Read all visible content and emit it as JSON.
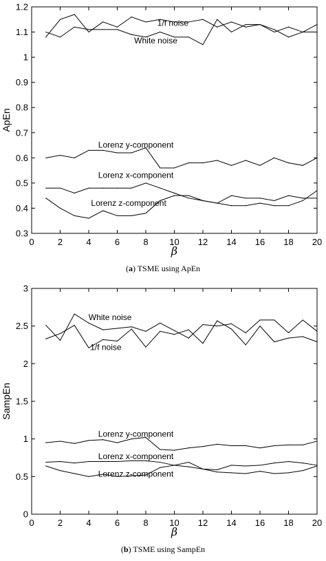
{
  "chart_data": [
    {
      "type": "line",
      "caption_letter": "a",
      "caption_text": "TSME using ApEn",
      "xlabel": "β",
      "ylabel": "ApEn",
      "xlim": [
        0,
        20
      ],
      "ylim": [
        0.3,
        1.2
      ],
      "xticks": [
        0,
        2,
        4,
        6,
        8,
        10,
        12,
        14,
        16,
        18,
        20
      ],
      "yticks": [
        0.3,
        0.4,
        0.5,
        0.6,
        0.7,
        0.8,
        0.9,
        1,
        1.1,
        1.2
      ],
      "ytick_labels": [
        "0.3",
        "0.4",
        "0.5",
        "0.6",
        "0.7",
        "0.8",
        "0.9",
        "1",
        "1.1",
        "1.2"
      ],
      "grid": false,
      "x": [
        1,
        2,
        3,
        4,
        5,
        6,
        7,
        8,
        9,
        10,
        11,
        12,
        13,
        14,
        15,
        16,
        17,
        18,
        19,
        20
      ],
      "series": [
        {
          "name": "1/f noise",
          "values": [
            1.08,
            1.15,
            1.17,
            1.1,
            1.14,
            1.12,
            1.16,
            1.14,
            1.15,
            1.14,
            1.14,
            1.15,
            1.12,
            1.14,
            1.12,
            1.13,
            1.1,
            1.12,
            1.1,
            1.1
          ]
        },
        {
          "name": "White noise",
          "values": [
            1.1,
            1.08,
            1.12,
            1.11,
            1.11,
            1.11,
            1.09,
            1.08,
            1.1,
            1.08,
            1.08,
            1.05,
            1.15,
            1.1,
            1.13,
            1.13,
            1.11,
            1.08,
            1.1,
            1.13
          ]
        },
        {
          "name": "Lorenz y-component",
          "values": [
            0.6,
            0.61,
            0.6,
            0.63,
            0.63,
            0.62,
            0.62,
            0.64,
            0.56,
            0.56,
            0.58,
            0.58,
            0.59,
            0.57,
            0.59,
            0.57,
            0.6,
            0.58,
            0.57,
            0.6
          ]
        },
        {
          "name": "Lorenz x-component",
          "values": [
            0.48,
            0.48,
            0.46,
            0.48,
            0.48,
            0.48,
            0.48,
            0.5,
            0.48,
            0.46,
            0.44,
            0.43,
            0.42,
            0.45,
            0.44,
            0.44,
            0.43,
            0.45,
            0.44,
            0.44
          ]
        },
        {
          "name": "Lorenz z-component",
          "values": [
            0.44,
            0.4,
            0.37,
            0.36,
            0.39,
            0.37,
            0.37,
            0.38,
            0.43,
            0.45,
            0.45,
            0.43,
            0.42,
            0.41,
            0.41,
            0.42,
            0.41,
            0.41,
            0.43,
            0.47
          ]
        }
      ],
      "annotations": [
        {
          "text": "1/f noise",
          "x": 9.9,
          "y": 1.125
        },
        {
          "text": "White noise",
          "x": 8.7,
          "y": 1.055
        },
        {
          "text": "Lorenz y-component",
          "x": 7.3,
          "y": 0.64
        },
        {
          "text": "Lorenz x-component",
          "x": 7.3,
          "y": 0.52
        },
        {
          "text": "Lorenz z-component",
          "x": 6.8,
          "y": 0.41
        }
      ]
    },
    {
      "type": "line",
      "caption_letter": "b",
      "caption_text": "TSME using SampEn",
      "xlabel": "β",
      "ylabel": "SampEn",
      "xlim": [
        0,
        20
      ],
      "ylim": [
        0,
        3
      ],
      "xticks": [
        0,
        2,
        4,
        6,
        8,
        10,
        12,
        14,
        16,
        18,
        20
      ],
      "yticks": [
        0,
        0.5,
        1,
        1.5,
        2,
        2.5,
        3
      ],
      "ytick_labels": [
        "0",
        "0.5",
        "1",
        "1.5",
        "2",
        "2.5",
        "3"
      ],
      "grid": false,
      "x": [
        1,
        2,
        3,
        4,
        5,
        6,
        7,
        8,
        9,
        10,
        11,
        12,
        13,
        14,
        15,
        16,
        17,
        18,
        19,
        20
      ],
      "series": [
        {
          "name": "White noise",
          "values": [
            2.51,
            2.31,
            2.66,
            2.54,
            2.45,
            2.47,
            2.49,
            2.43,
            2.54,
            2.44,
            2.34,
            2.52,
            2.5,
            2.53,
            2.41,
            2.58,
            2.58,
            2.41,
            2.58,
            2.43
          ]
        },
        {
          "name": "1/f noise",
          "values": [
            2.33,
            2.4,
            2.51,
            2.21,
            2.32,
            2.3,
            2.46,
            2.22,
            2.43,
            2.39,
            2.45,
            2.27,
            2.57,
            2.46,
            2.25,
            2.5,
            2.29,
            2.34,
            2.36,
            2.29
          ]
        },
        {
          "name": "Lorenz y-component",
          "values": [
            0.95,
            0.97,
            0.94,
            0.98,
            0.99,
            0.95,
            1.0,
            1.02,
            0.86,
            0.85,
            0.88,
            0.9,
            0.93,
            0.91,
            0.91,
            0.88,
            0.91,
            0.92,
            0.92,
            0.97
          ]
        },
        {
          "name": "Lorenz x-component",
          "values": [
            0.69,
            0.7,
            0.68,
            0.7,
            0.7,
            0.7,
            0.71,
            0.71,
            0.69,
            0.65,
            0.63,
            0.6,
            0.59,
            0.65,
            0.64,
            0.65,
            0.68,
            0.7,
            0.68,
            0.65
          ]
        },
        {
          "name": "Lorenz z-component",
          "values": [
            0.64,
            0.58,
            0.54,
            0.5,
            0.53,
            0.5,
            0.51,
            0.52,
            0.62,
            0.65,
            0.69,
            0.6,
            0.56,
            0.55,
            0.54,
            0.57,
            0.54,
            0.55,
            0.58,
            0.64
          ]
        }
      ],
      "annotations": [
        {
          "text": "White noise",
          "x": 5.5,
          "y": 2.58
        },
        {
          "text": "1/f noise",
          "x": 5.2,
          "y": 2.18
        },
        {
          "text": "Lorenz y-component",
          "x": 7.3,
          "y": 1.03
        },
        {
          "text": "Lorenz x-component",
          "x": 7.3,
          "y": 0.73
        },
        {
          "text": "Lorenz z-component",
          "x": 7.3,
          "y": 0.5
        }
      ]
    }
  ]
}
